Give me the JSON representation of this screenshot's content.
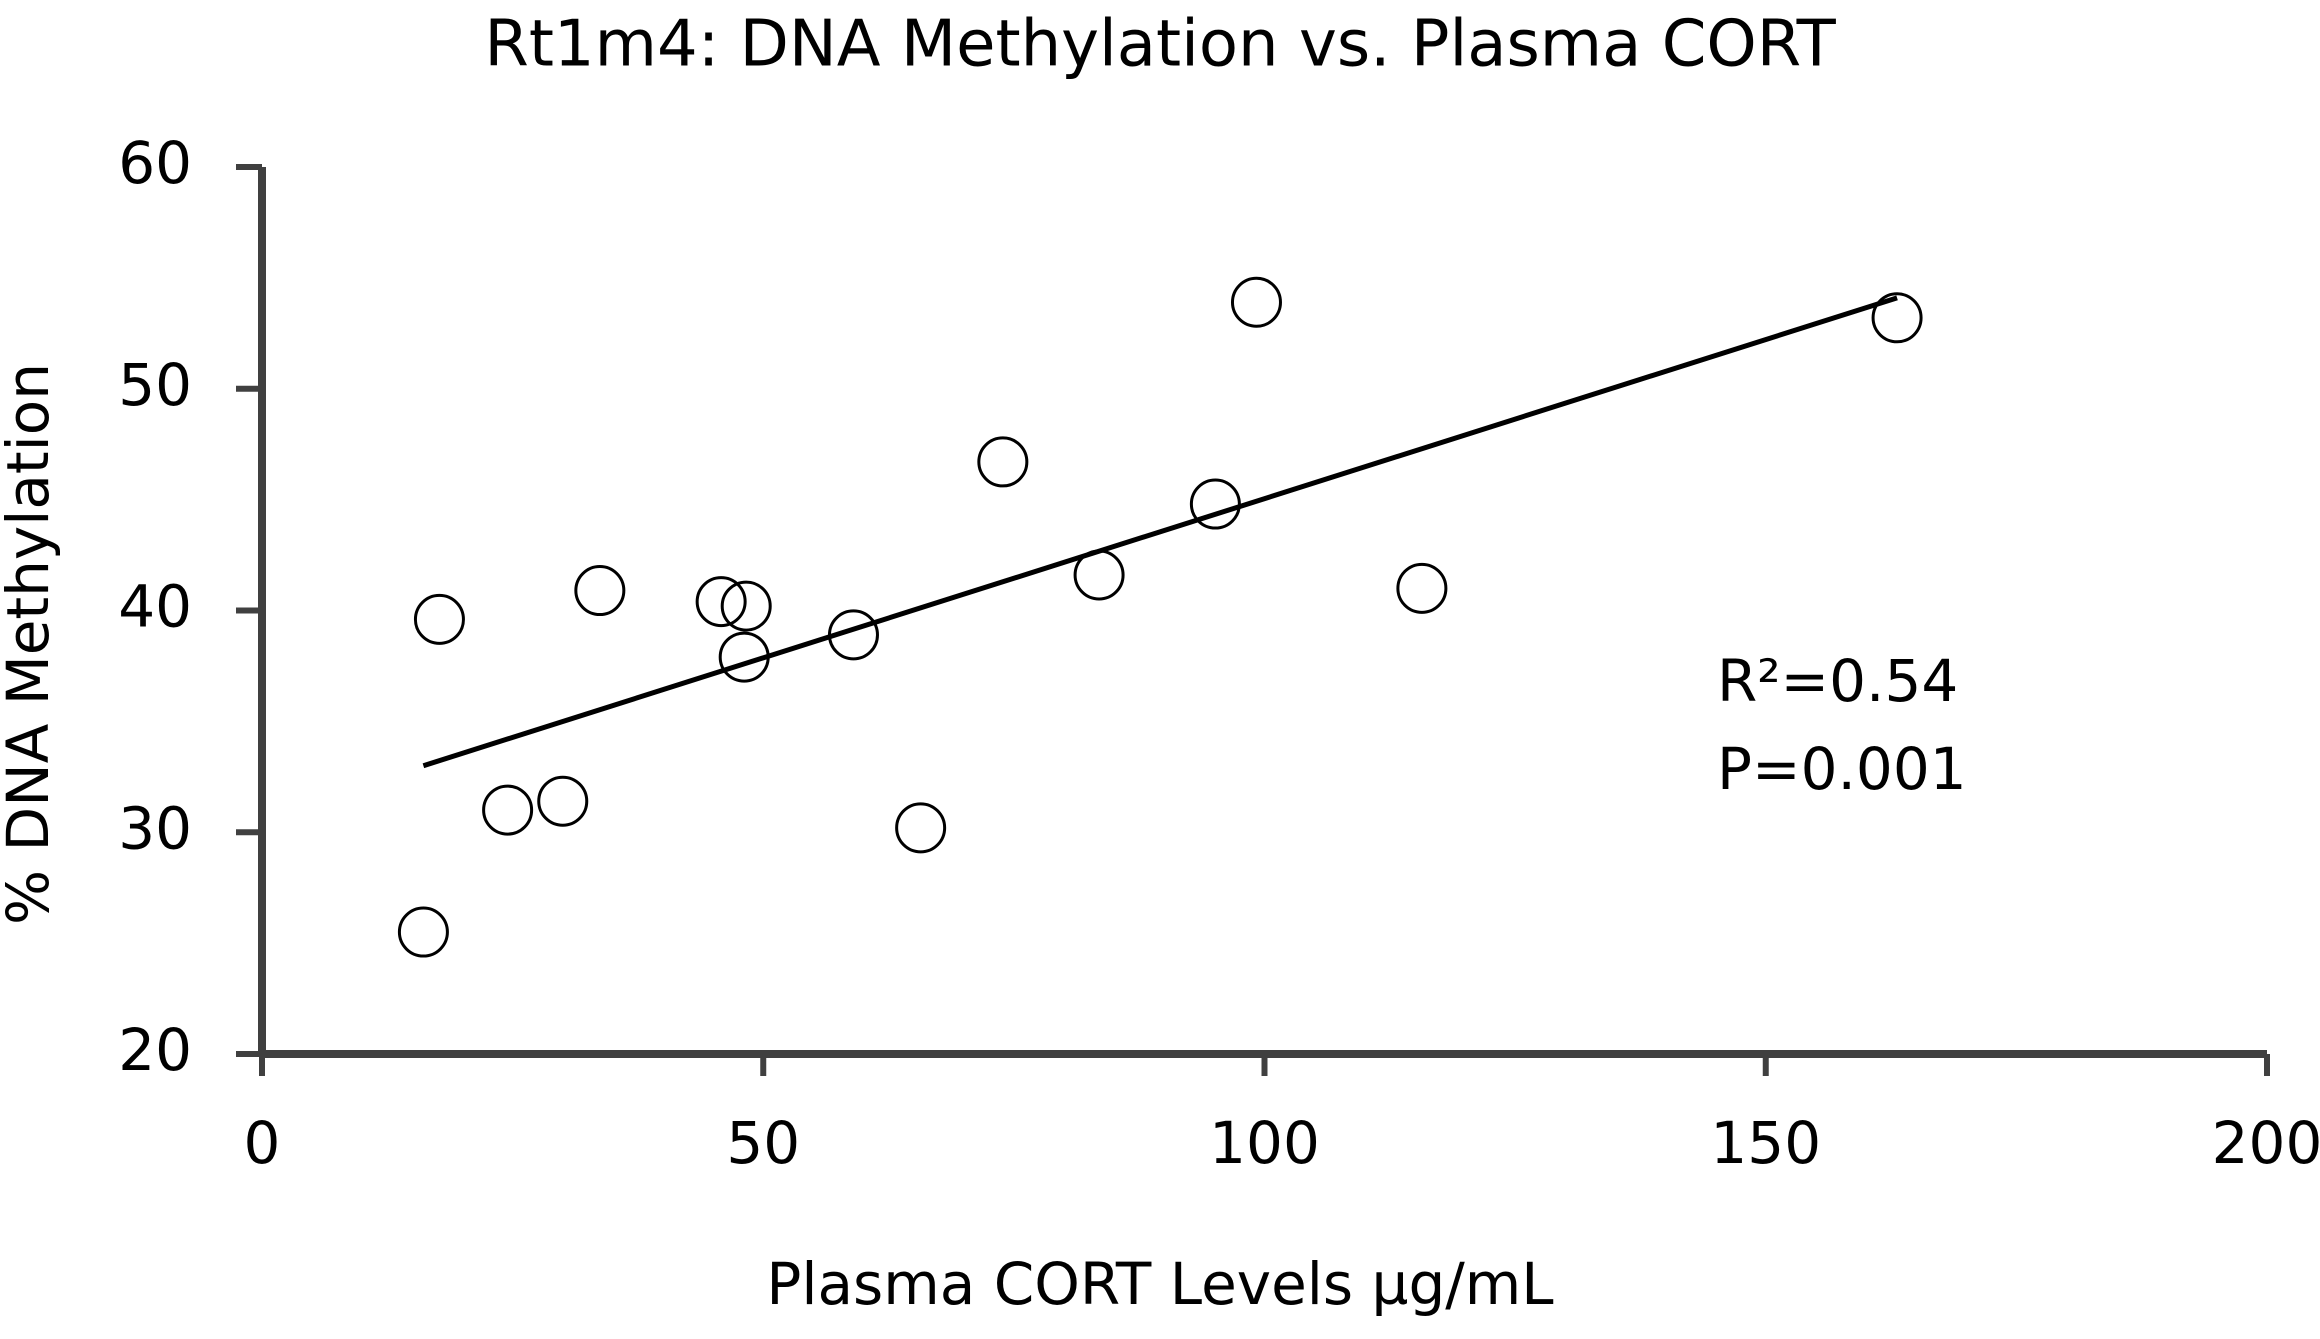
{
  "chart_data": {
    "type": "scatter",
    "title": "Rt1m4: DNA Methylation vs. Plasma CORT",
    "xlabel": "Plasma CORT Levels µg/mL",
    "ylabel": "% DNA Methylation",
    "x": [
      16.1,
      17.7,
      24.5,
      30.0,
      33.7,
      45.8,
      48.3,
      48.1,
      59.0,
      65.7,
      73.9,
      83.5,
      95.1,
      99.2,
      115.7,
      163.1
    ],
    "values": [
      25.5,
      39.6,
      31.0,
      31.4,
      40.9,
      40.4,
      40.2,
      37.9,
      38.9,
      30.2,
      46.7,
      41.6,
      44.8,
      53.9,
      41.0,
      53.2
    ],
    "color": "#000000",
    "trendline": {
      "x": [
        16.1,
        163.1
      ],
      "y": [
        33.0,
        54.1
      ]
    },
    "annotations": [
      "R²=0.54",
      "P=0.001"
    ],
    "xlim": [
      0,
      200
    ],
    "xticks": [
      0,
      50,
      100,
      150,
      200
    ],
    "ylim": [
      20,
      60
    ],
    "yticks": [
      20,
      30,
      40,
      50,
      60
    ],
    "grid": false
  }
}
